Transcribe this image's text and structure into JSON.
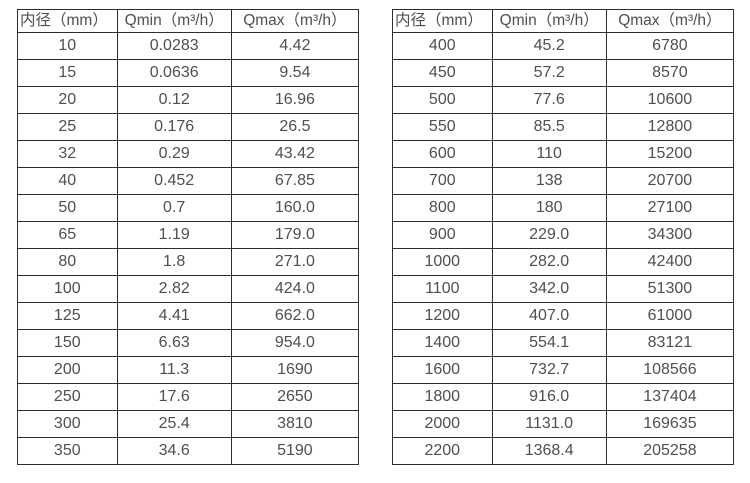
{
  "colors": {
    "background": "#ffffff",
    "border": "#2e2e2e",
    "text": "#4f4f4f"
  },
  "tables": [
    {
      "name": "flow-table-small-diameters",
      "headers": [
        "内径（mm）",
        "Qmin（m³/h）",
        "Qmax（m³/h）"
      ],
      "rows": [
        [
          "10",
          "0.0283",
          "4.42"
        ],
        [
          "15",
          "0.0636",
          "9.54"
        ],
        [
          "20",
          "0.12",
          "16.96"
        ],
        [
          "25",
          "0.176",
          "26.5"
        ],
        [
          "32",
          "0.29",
          "43.42"
        ],
        [
          "40",
          "0.452",
          "67.85"
        ],
        [
          "50",
          "0.7",
          "160.0"
        ],
        [
          "65",
          "1.19",
          "179.0"
        ],
        [
          "80",
          "1.8",
          "271.0"
        ],
        [
          "100",
          "2.82",
          "424.0"
        ],
        [
          "125",
          "4.41",
          "662.0"
        ],
        [
          "150",
          "6.63",
          "954.0"
        ],
        [
          "200",
          "11.3",
          "1690"
        ],
        [
          "250",
          "17.6",
          "2650"
        ],
        [
          "300",
          "25.4",
          "3810"
        ],
        [
          "350",
          "34.6",
          "5190"
        ]
      ]
    },
    {
      "name": "flow-table-large-diameters",
      "headers": [
        "内径（mm）",
        "Qmin（m³/h）",
        "Qmax（m³/h）"
      ],
      "rows": [
        [
          "400",
          "45.2",
          "6780"
        ],
        [
          "450",
          "57.2",
          "8570"
        ],
        [
          "500",
          "77.6",
          "10600"
        ],
        [
          "550",
          "85.5",
          "12800"
        ],
        [
          "600",
          "110",
          "15200"
        ],
        [
          "700",
          "138",
          "20700"
        ],
        [
          "800",
          "180",
          "27100"
        ],
        [
          "900",
          "229.0",
          "34300"
        ],
        [
          "1000",
          "282.0",
          "42400"
        ],
        [
          "1100",
          "342.0",
          "51300"
        ],
        [
          "1200",
          "407.0",
          "61000"
        ],
        [
          "1400",
          "554.1",
          "83121"
        ],
        [
          "1600",
          "732.7",
          "108566"
        ],
        [
          "1800",
          "916.0",
          "137404"
        ],
        [
          "2000",
          "1131.0",
          "169635"
        ],
        [
          "2200",
          "1368.4",
          "205258"
        ]
      ]
    }
  ]
}
